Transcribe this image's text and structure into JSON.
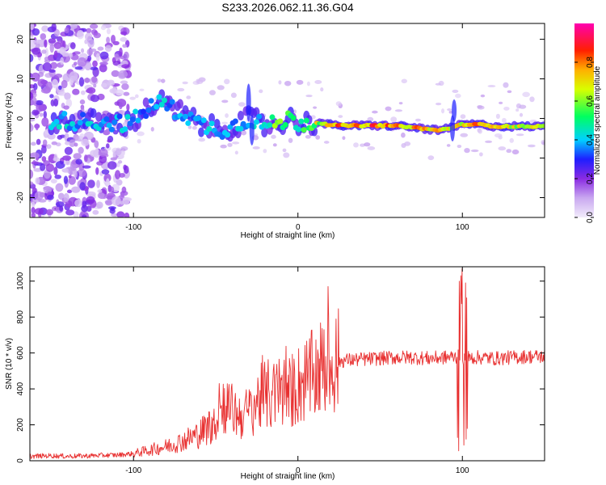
{
  "title": "S233.2026.062.11.36.G04",
  "chart_data": [
    {
      "type": "heatmap",
      "name": "spectrogram",
      "xlabel": "Height of straight line (km)",
      "ylabel": "Frequency (Hz)",
      "xlim": [
        -163,
        150
      ],
      "ylim": [
        -25,
        24
      ],
      "xticks": [
        -100,
        0,
        100
      ],
      "yticks": [
        20,
        10,
        0,
        -10,
        -20
      ],
      "colorbar": {
        "label": "Normalized spectral amplitude",
        "range": [
          0,
          1
        ],
        "ticks": [
          "0.0",
          "0.2",
          "0.4",
          "0.6",
          "0.8"
        ],
        "tick_values": [
          0,
          0.2,
          0.4,
          0.6,
          0.8
        ],
        "stops": [
          "#e9dcf8",
          "#8a2be2",
          "#1e1eff",
          "#00d0ff",
          "#00ff40",
          "#ffff00",
          "#ff8000",
          "#ff0000",
          "#ff00a0"
        ]
      },
      "ridge": [
        {
          "x": -150,
          "f": -0.5,
          "a": 0.45
        },
        {
          "x": -110,
          "f": -1.0,
          "a": 0.4
        },
        {
          "x": -105,
          "f": -1.5,
          "a": 0.45
        },
        {
          "x": -98,
          "f": 0.0,
          "a": 0.4
        },
        {
          "x": -90,
          "f": 3.0,
          "a": 0.4
        },
        {
          "x": -82,
          "f": 4.0,
          "a": 0.45
        },
        {
          "x": -75,
          "f": 2.0,
          "a": 0.4
        },
        {
          "x": -68,
          "f": 1.0,
          "a": 0.4
        },
        {
          "x": -62,
          "f": -1.0,
          "a": 0.4
        },
        {
          "x": -55,
          "f": -2.0,
          "a": 0.45
        },
        {
          "x": -48,
          "f": -3.0,
          "a": 0.4
        },
        {
          "x": -40,
          "f": -2.0,
          "a": 0.4
        },
        {
          "x": -34,
          "f": -1.0,
          "a": 0.42
        },
        {
          "x": -28,
          "f": 0.0,
          "a": 0.45
        },
        {
          "x": -20,
          "f": -2.0,
          "a": 0.5
        },
        {
          "x": -15,
          "f": -1.5,
          "a": 0.65
        },
        {
          "x": -10,
          "f": -1.0,
          "a": 0.6
        },
        {
          "x": -5,
          "f": 0.0,
          "a": 0.55
        },
        {
          "x": 0,
          "f": -1.0,
          "a": 0.55
        },
        {
          "x": 5,
          "f": -1.2,
          "a": 0.6
        },
        {
          "x": 12,
          "f": -1.0,
          "a": 0.7
        },
        {
          "x": 18,
          "f": -1.5,
          "a": 0.75
        },
        {
          "x": 25,
          "f": -1.8,
          "a": 0.85
        },
        {
          "x": 35,
          "f": -1.8,
          "a": 0.85
        },
        {
          "x": 45,
          "f": -1.8,
          "a": 0.88
        },
        {
          "x": 55,
          "f": -1.8,
          "a": 0.88
        },
        {
          "x": 65,
          "f": -2.0,
          "a": 0.8
        },
        {
          "x": 75,
          "f": -2.5,
          "a": 0.82
        },
        {
          "x": 85,
          "f": -3.0,
          "a": 0.8
        },
        {
          "x": 92,
          "f": -2.5,
          "a": 0.75
        },
        {
          "x": 100,
          "f": -1.5,
          "a": 0.78
        },
        {
          "x": 110,
          "f": -1.5,
          "a": 0.82
        },
        {
          "x": 120,
          "f": -2.0,
          "a": 0.8
        },
        {
          "x": 130,
          "f": -2.0,
          "a": 0.75
        },
        {
          "x": 140,
          "f": -2.0,
          "a": 0.7
        },
        {
          "x": 150,
          "f": -2.0,
          "a": 0.65
        }
      ]
    },
    {
      "type": "line",
      "name": "snr",
      "xlabel": "Height of straight line (km)",
      "ylabel": "SNR (10 * v/v)",
      "xlim": [
        -163,
        150
      ],
      "ylim": [
        0,
        1080
      ],
      "xticks": [
        -100,
        0,
        100
      ],
      "yticks": [
        0,
        200,
        400,
        600,
        800,
        1000
      ],
      "color": "#e83030",
      "series": [
        {
          "name": "SNR",
          "points": [
            [
              -163,
              25
            ],
            [
              -150,
              28
            ],
            [
              -140,
              25
            ],
            [
              -130,
              27
            ],
            [
              -120,
              30
            ],
            [
              -110,
              32
            ],
            [
              -100,
              40
            ],
            [
              -90,
              60
            ],
            [
              -80,
              80
            ],
            [
              -70,
              110
            ],
            [
              -60,
              150
            ],
            [
              -50,
              220
            ],
            [
              -45,
              320
            ],
            [
              -40,
              280
            ],
            [
              -35,
              250
            ],
            [
              -30,
              270
            ],
            [
              -25,
              330
            ],
            [
              -20,
              370
            ],
            [
              -15,
              360
            ],
            [
              -10,
              390
            ],
            [
              -5,
              380
            ],
            [
              0,
              420
            ],
            [
              5,
              450
            ],
            [
              10,
              480
            ],
            [
              15,
              520
            ],
            [
              20,
              545
            ],
            [
              25,
              555
            ],
            [
              30,
              560
            ],
            [
              40,
              565
            ],
            [
              50,
              570
            ],
            [
              60,
              575
            ],
            [
              70,
              575
            ],
            [
              80,
              570
            ],
            [
              90,
              575
            ],
            [
              95,
              580
            ],
            [
              100,
              575
            ],
            [
              105,
              575
            ],
            [
              110,
              575
            ],
            [
              120,
              570
            ],
            [
              130,
              575
            ],
            [
              140,
              580
            ],
            [
              150,
              580
            ]
          ],
          "spikes": [
            [
              -48,
              430
            ],
            [
              -30,
              250
            ],
            [
              -20,
              400
            ],
            [
              -10,
              450
            ],
            [
              5,
              460
            ],
            [
              98,
              1000
            ],
            [
              99,
              100
            ],
            [
              100,
              1070
            ],
            [
              101,
              50
            ],
            [
              102,
              560
            ]
          ]
        }
      ]
    }
  ]
}
